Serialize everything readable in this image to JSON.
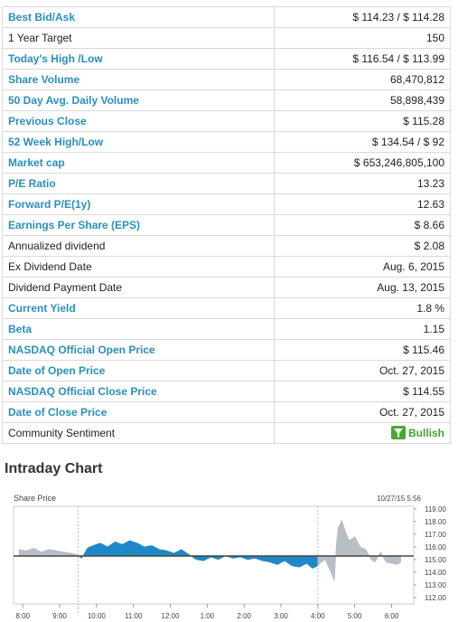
{
  "quote_rows": [
    {
      "label": "Best Bid/Ask",
      "value": "$ 114.23 / $ 114.28",
      "link": true
    },
    {
      "label": "1 Year Target",
      "value": "150",
      "link": false
    },
    {
      "label": "Today's High /Low",
      "value": "$ 116.54 / $ 113.99",
      "link": true
    },
    {
      "label": "Share Volume",
      "value": "68,470,812",
      "link": true
    },
    {
      "label": "50 Day Avg. Daily Volume",
      "value": "58,898,439",
      "link": true
    },
    {
      "label": "Previous Close",
      "value": "$ 115.28",
      "link": true
    },
    {
      "label": "52 Week High/Low",
      "value": "$ 134.54 / $ 92",
      "link": true
    },
    {
      "label": "Market cap",
      "value": "$ 653,246,805,100",
      "link": true
    },
    {
      "label": "P/E Ratio",
      "value": "13.23",
      "link": true
    },
    {
      "label": "Forward P/E(1y)",
      "value": "12.63",
      "link": true
    },
    {
      "label": "Earnings Per Share (EPS)",
      "value": "$ 8.66",
      "link": true
    },
    {
      "label": "Annualized dividend",
      "value": "$ 2.08",
      "link": false
    },
    {
      "label": "Ex Dividend Date",
      "value": "Aug. 6, 2015",
      "link": false
    },
    {
      "label": "Dividend Payment Date",
      "value": "Aug. 13, 2015",
      "link": false
    },
    {
      "label": "Current Yield",
      "value": "1.8 %",
      "link": true
    },
    {
      "label": "Beta",
      "value": "1.15",
      "link": true
    },
    {
      "label": "NASDAQ Official Open Price",
      "value": "$ 115.46",
      "link": true
    },
    {
      "label": "Date of Open Price",
      "value": "Oct. 27, 2015",
      "link": true
    },
    {
      "label": "NASDAQ Official Close Price",
      "value": "$ 114.55",
      "link": true
    },
    {
      "label": "Date of Close Price",
      "value": "Oct. 27, 2015",
      "link": true
    }
  ],
  "sentiment": {
    "label": "Community Sentiment",
    "value": "Bullish",
    "icon": "filter-funnel-icon",
    "color": "#4aa832"
  },
  "intraday": {
    "title": "Intraday Chart"
  },
  "colors": {
    "link": "#2a8fbd",
    "up_fill": "#1f88c6",
    "extended_fill": "#b8bec6",
    "baseline": "#444444"
  },
  "chart_data": {
    "type": "area",
    "series_label": "Share Price",
    "timestamp": "10/27/15  5:56",
    "baseline": 115.28,
    "ylim": [
      111.5,
      119.2
    ],
    "yticks": [
      "119.00",
      "118.00",
      "117.00",
      "116.00",
      "115.00",
      "114.00",
      "113.00",
      "112.00"
    ],
    "ytick_values": [
      119,
      118,
      117,
      116,
      115,
      114,
      113,
      112
    ],
    "xticks": [
      "8:00",
      "9:00",
      "10:00",
      "11:00",
      "12:00",
      "1:00",
      "2:00",
      "3:00",
      "4:00",
      "5:00",
      "6:00"
    ],
    "xtick_values": [
      8,
      9,
      10,
      11,
      12,
      13,
      14,
      15,
      16,
      17,
      18
    ],
    "xlim": [
      7.75,
      18.6
    ],
    "session_start": 9.5,
    "session_end": 16,
    "points": [
      [
        7.9,
        115.8
      ],
      [
        8.1,
        115.7
      ],
      [
        8.3,
        115.9
      ],
      [
        8.5,
        115.6
      ],
      [
        8.7,
        115.8
      ],
      [
        8.9,
        115.7
      ],
      [
        9.1,
        115.6
      ],
      [
        9.3,
        115.5
      ],
      [
        9.45,
        115.4
      ],
      [
        9.5,
        115.3
      ],
      [
        9.6,
        115.1
      ],
      [
        9.75,
        115.9
      ],
      [
        9.9,
        116.1
      ],
      [
        10.1,
        116.3
      ],
      [
        10.3,
        116.0
      ],
      [
        10.5,
        116.4
      ],
      [
        10.7,
        116.2
      ],
      [
        10.9,
        116.5
      ],
      [
        11.1,
        116.3
      ],
      [
        11.3,
        116.0
      ],
      [
        11.5,
        116.1
      ],
      [
        11.7,
        115.8
      ],
      [
        11.9,
        115.7
      ],
      [
        12.1,
        115.5
      ],
      [
        12.3,
        115.8
      ],
      [
        12.5,
        115.4
      ],
      [
        12.7,
        115.0
      ],
      [
        12.9,
        114.9
      ],
      [
        13.1,
        115.2
      ],
      [
        13.3,
        115.0
      ],
      [
        13.5,
        115.3
      ],
      [
        13.7,
        115.1
      ],
      [
        13.9,
        115.2
      ],
      [
        14.1,
        115.0
      ],
      [
        14.3,
        115.1
      ],
      [
        14.5,
        114.9
      ],
      [
        14.7,
        114.8
      ],
      [
        14.9,
        114.6
      ],
      [
        15.1,
        114.9
      ],
      [
        15.3,
        114.5
      ],
      [
        15.5,
        114.4
      ],
      [
        15.7,
        114.7
      ],
      [
        15.85,
        114.3
      ],
      [
        16.0,
        114.5
      ],
      [
        16.1,
        114.8
      ],
      [
        16.2,
        115.0
      ],
      [
        16.35,
        114.0
      ],
      [
        16.45,
        113.3
      ],
      [
        16.5,
        116.2
      ],
      [
        16.55,
        117.5
      ],
      [
        16.65,
        118.1
      ],
      [
        16.75,
        117.2
      ],
      [
        16.85,
        116.5
      ],
      [
        17.0,
        116.8
      ],
      [
        17.15,
        116.0
      ],
      [
        17.3,
        115.8
      ],
      [
        17.45,
        115.0
      ],
      [
        17.55,
        114.8
      ],
      [
        17.7,
        115.6
      ],
      [
        17.85,
        114.8
      ],
      [
        18.0,
        114.7
      ],
      [
        18.15,
        114.6
      ],
      [
        18.25,
        114.8
      ]
    ]
  }
}
